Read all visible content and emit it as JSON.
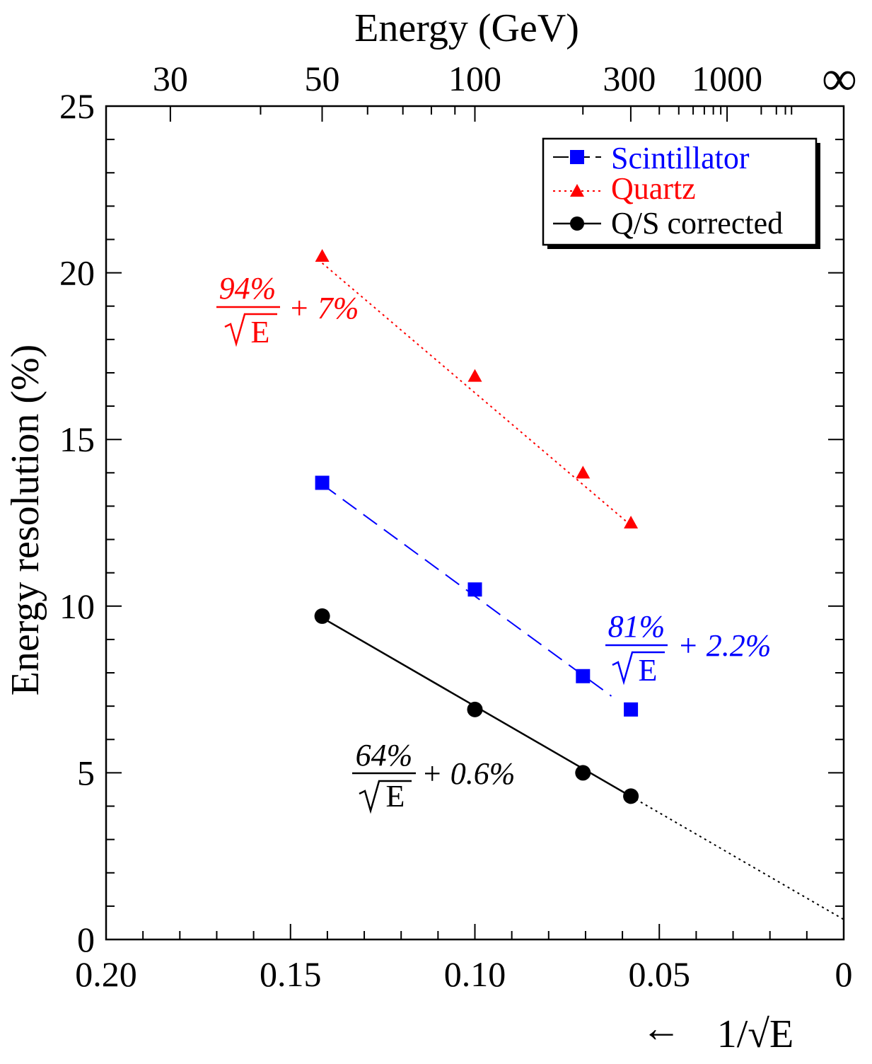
{
  "chart_data": {
    "type": "line",
    "xlabel_top": "Energy (GeV)",
    "ylabel": "Energy resolution (%)",
    "xlabel_bottom_prefix": "←",
    "xlabel_bottom": "1/√E",
    "xlim": [
      0.2,
      0.0
    ],
    "ylim": [
      0,
      25
    ],
    "x_ticks": [
      {
        "value": 0.2,
        "label": "0.20"
      },
      {
        "value": 0.15,
        "label": "0.15"
      },
      {
        "value": 0.1,
        "label": "0.10"
      },
      {
        "value": 0.05,
        "label": "0.05"
      },
      {
        "value": 0.0,
        "label": "0"
      }
    ],
    "y_ticks": [
      {
        "value": 0,
        "label": "0"
      },
      {
        "value": 5,
        "label": "5"
      },
      {
        "value": 10,
        "label": "10"
      },
      {
        "value": 15,
        "label": "15"
      },
      {
        "value": 20,
        "label": "20"
      },
      {
        "value": 25,
        "label": "25"
      }
    ],
    "top_ticks": [
      {
        "energy": 30,
        "label": "30"
      },
      {
        "energy": 50,
        "label": "50"
      },
      {
        "energy": 100,
        "label": "100"
      },
      {
        "energy": 300,
        "label": "300"
      },
      {
        "energy": 1000,
        "label": "1000"
      },
      {
        "energy": "inf",
        "label": "∞"
      }
    ],
    "series": [
      {
        "name": "Scintillator",
        "color": "#0000ff",
        "marker": "square",
        "line_style": "dashed",
        "x": [
          0.1414,
          0.1,
          0.0707,
          0.0577
        ],
        "y": [
          13.7,
          10.5,
          7.9,
          6.9
        ],
        "fit_text": {
          "numerator": "81%",
          "denominator": "E",
          "constant": "+ 2.2%"
        },
        "fit": {
          "a": 81,
          "b": 2.2,
          "x_range": [
            0.1414,
            0.063
          ]
        }
      },
      {
        "name": "Quartz",
        "color": "#ff0000",
        "marker": "triangle",
        "line_style": "dotted",
        "x": [
          0.1414,
          0.1,
          0.0707,
          0.0577
        ],
        "y": [
          20.5,
          16.9,
          14.0,
          12.5
        ],
        "fit_text": {
          "numerator": "94%",
          "denominator": "E",
          "constant": "+ 7%"
        },
        "fit": {
          "a": 94,
          "b": 7,
          "x_range": [
            0.1414,
            0.0577
          ]
        }
      },
      {
        "name": "Q/S corrected",
        "color": "#000000",
        "marker": "circle",
        "line_style": "solid",
        "x": [
          0.1414,
          0.1,
          0.0707,
          0.0577
        ],
        "y": [
          9.7,
          6.9,
          5.0,
          4.3
        ],
        "fit_text": {
          "numerator": "64%",
          "denominator": "E",
          "constant": "+ 0.6%"
        },
        "fit": {
          "a": 64,
          "b": 0.6,
          "x_range": [
            0.1414,
            0.0577
          ],
          "extrapolate_to": 0.0
        }
      }
    ],
    "legend_position": "top-right"
  }
}
